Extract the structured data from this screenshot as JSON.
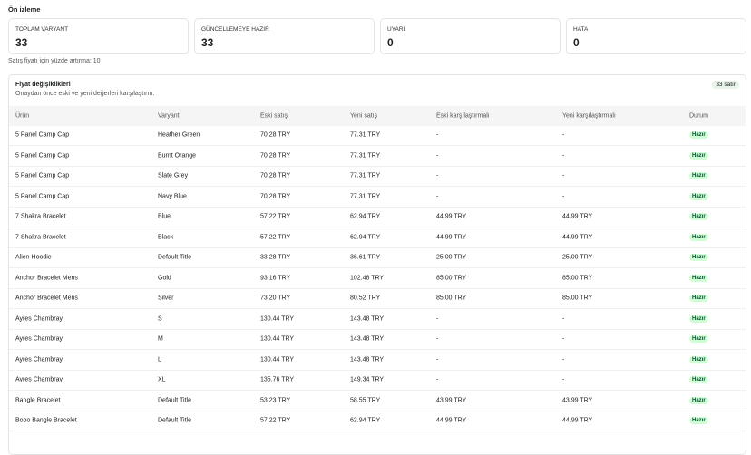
{
  "header": {
    "title": "Ön izleme"
  },
  "summary_cards": [
    {
      "label": "TOPLAM VARYANT",
      "value": 33
    },
    {
      "label": "GÜNCELLEMEYE HAZIR",
      "value": 33
    },
    {
      "label": "UYARI",
      "value": 0
    },
    {
      "label": "HATA",
      "value": 0
    }
  ],
  "note": "Satış fiyatı için yüzde artırma: 10",
  "table": {
    "title": "Fiyat değişiklikleri",
    "subtitle": "Onaydan önce eski ve yeni değerleri karşılaştırın.",
    "row_count_badge": "33 satır",
    "columns": [
      "Ürün",
      "Varyant",
      "Eski satış",
      "Yeni satış",
      "Eski karşılaştırmalı",
      "Yeni karşılaştırmalı",
      "Durum"
    ],
    "rows": [
      [
        "5 Panel Camp Cap",
        "Heather Green",
        "70.28 TRY",
        "77.31 TRY",
        "-",
        "-",
        "Hazır"
      ],
      [
        "5 Panel Camp Cap",
        "Burnt Orange",
        "70.28 TRY",
        "77.31 TRY",
        "-",
        "-",
        "Hazır"
      ],
      [
        "5 Panel Camp Cap",
        "Slate Grey",
        "70.28 TRY",
        "77.31 TRY",
        "-",
        "-",
        "Hazır"
      ],
      [
        "5 Panel Camp Cap",
        "Navy Blue",
        "70.28 TRY",
        "77.31 TRY",
        "-",
        "-",
        "Hazır"
      ],
      [
        "7 Shakra Bracelet",
        "Blue",
        "57.22 TRY",
        "62.94 TRY",
        "44.99 TRY",
        "44.99 TRY",
        "Hazır"
      ],
      [
        "7 Shakra Bracelet",
        "Black",
        "57.22 TRY",
        "62.94 TRY",
        "44.99 TRY",
        "44.99 TRY",
        "Hazır"
      ],
      [
        "Alien Hoodie",
        "Default Title",
        "33.28 TRY",
        "36.61 TRY",
        "25.00 TRY",
        "25.00 TRY",
        "Hazır"
      ],
      [
        "Anchor Bracelet Mens",
        "Gold",
        "93.16 TRY",
        "102.48 TRY",
        "85.00 TRY",
        "85.00 TRY",
        "Hazır"
      ],
      [
        "Anchor Bracelet Mens",
        "Silver",
        "73.20 TRY",
        "80.52 TRY",
        "85.00 TRY",
        "85.00 TRY",
        "Hazır"
      ],
      [
        "Ayres Chambray",
        "S",
        "130.44 TRY",
        "143.48 TRY",
        "-",
        "-",
        "Hazır"
      ],
      [
        "Ayres Chambray",
        "M",
        "130.44 TRY",
        "143.48 TRY",
        "-",
        "-",
        "Hazır"
      ],
      [
        "Ayres Chambray",
        "L",
        "130.44 TRY",
        "143.48 TRY",
        "-",
        "-",
        "Hazır"
      ],
      [
        "Ayres Chambray",
        "XL",
        "135.76 TRY",
        "149.34 TRY",
        "-",
        "-",
        "Hazır"
      ],
      [
        "Bangle Bracelet",
        "Default Title",
        "53.23 TRY",
        "58.55 TRY",
        "43.99 TRY",
        "43.99 TRY",
        "Hazır"
      ],
      [
        "Bobo Bangle Bracelet",
        "Default Title",
        "57.22 TRY",
        "62.94 TRY",
        "44.99 TRY",
        "44.99 TRY",
        "Hazır"
      ]
    ]
  }
}
